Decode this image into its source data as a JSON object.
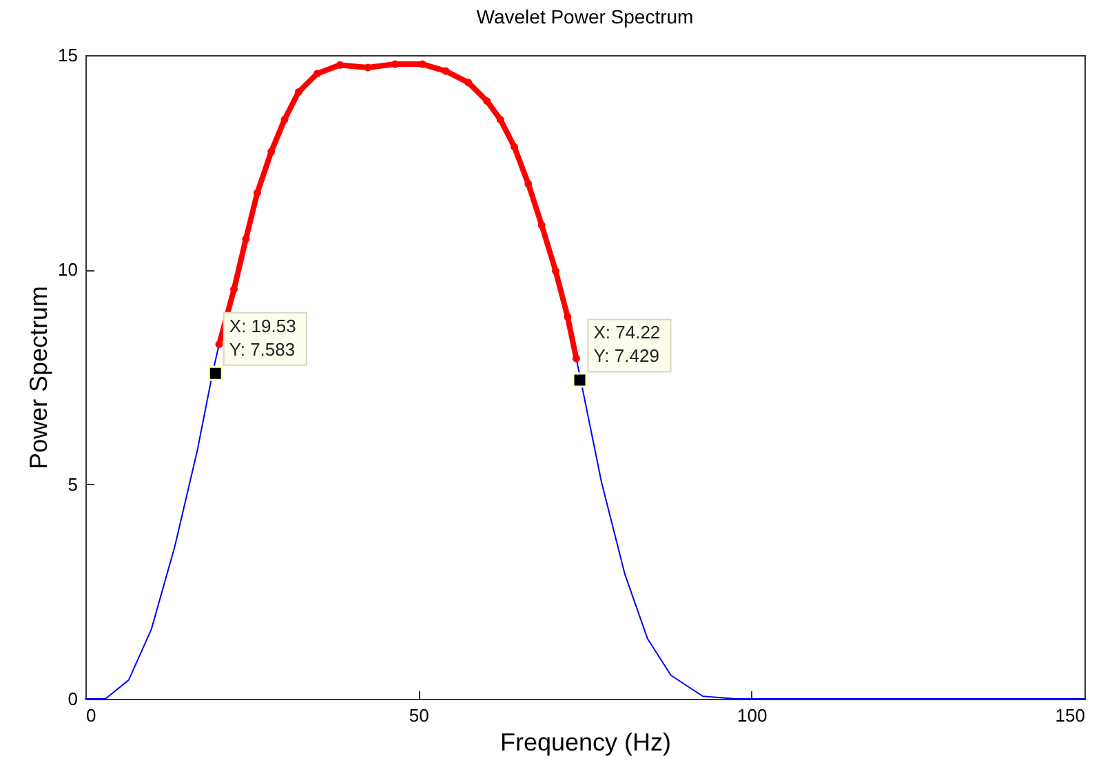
{
  "chart_data": {
    "type": "line",
    "title": "Wavelet Power Spectrum",
    "xlabel": "Frequency (Hz)",
    "ylabel": "Power Spectrum",
    "xlim": [
      0,
      150
    ],
    "xticks": [
      0,
      50,
      100,
      150
    ],
    "ylim": [
      0,
      15
    ],
    "yticks": [
      0,
      5,
      10,
      15
    ],
    "grid": false,
    "series": [
      {
        "color": "#0000ff",
        "marker": "none",
        "x": [
          0,
          3.0,
          6.5,
          9.9,
          13.4,
          16.8,
          19.1,
          20.07,
          22.3,
          24.1,
          25.8,
          27.9,
          29.9,
          32.0,
          34.8,
          38.2,
          42.4,
          46.5,
          50.6,
          54.1,
          57.5,
          60.3,
          62.3,
          64.4,
          66.5,
          68.5,
          70.6,
          72.4,
          73.7,
          74.4,
          77.5,
          81.0,
          84.4,
          87.9,
          92.7,
          97.6,
          150
        ],
        "values": [
          0,
          0,
          0.44,
          1.62,
          3.54,
          5.79,
          7.6,
          8.26,
          null,
          null,
          null,
          null,
          null,
          null,
          null,
          null,
          null,
          null,
          null,
          null,
          null,
          null,
          null,
          null,
          null,
          null,
          null,
          null,
          7.93,
          7.4,
          5.04,
          2.9,
          1.4,
          0.55,
          0.06,
          0,
          0
        ]
      },
      {
        "color": "#ff0000",
        "marker": "circle",
        "x": [
          20.07,
          22.3,
          24.1,
          25.8,
          27.9,
          29.9,
          32.0,
          34.8,
          38.2,
          42.4,
          46.5,
          50.6,
          54.1,
          57.5,
          60.3,
          62.3,
          64.4,
          66.5,
          68.5,
          70.6,
          72.4,
          73.7
        ],
        "values": [
          8.26,
          9.54,
          10.72,
          11.79,
          12.75,
          13.5,
          14.14,
          14.57,
          14.77,
          14.71,
          14.79,
          14.79,
          14.63,
          14.36,
          13.93,
          13.5,
          12.86,
          12.0,
          11.04,
          9.97,
          8.9,
          7.93
        ]
      },
      {
        "type": "scatter",
        "color": "#000000",
        "marker": "square",
        "x": [
          19.53,
          74.22
        ],
        "values": [
          7.583,
          7.429
        ]
      }
    ],
    "annotations": [
      {
        "text": "X: 19.53\nY: 7.583",
        "x": 19.53,
        "y": 7.583
      },
      {
        "text": "X: 74.22\nY: 7.429",
        "x": 74.22,
        "y": 7.429
      }
    ]
  }
}
